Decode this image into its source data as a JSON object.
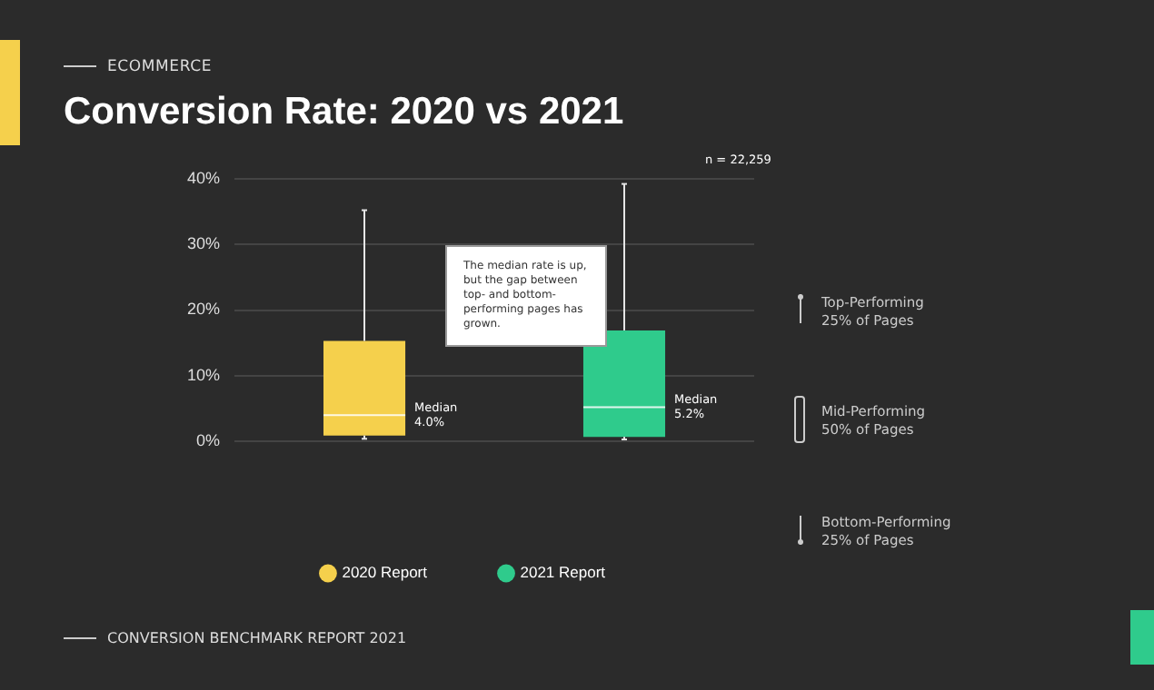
{
  "chart_data": {
    "type": "box",
    "subtitle": "ECOMMERCE",
    "title": "Conversion Rate: 2020 vs 2021",
    "categories": [
      null,
      null
    ],
    "series": [
      {
        "name": "2020 Report",
        "color": "#f5d04c",
        "boxes": [
          {
            "low": 0.4,
            "q1": 0.9,
            "median": 4.0,
            "q3": 15.3,
            "high": 35.2
          },
          null
        ],
        "value_labels": [
          "Median 4.0%",
          null
        ]
      },
      {
        "name": "2021 Report",
        "color": "#2fcb8c",
        "boxes": [
          null,
          {
            "low": 0.3,
            "q1": 0.7,
            "median": 5.2,
            "q3": 16.9,
            "high": 39.2
          }
        ],
        "value_labels": [
          null,
          "Median 5.2%"
        ]
      }
    ],
    "ylim": [
      0,
      40
    ],
    "yticks": [
      {
        "value": 0,
        "label": "0%"
      },
      {
        "value": 10,
        "label": "10%"
      },
      {
        "value": 20,
        "label": "20%"
      },
      {
        "value": 30,
        "label": "30%"
      },
      {
        "value": 40,
        "label": "40%"
      }
    ],
    "grid": "y",
    "legend": "bottom",
    "annotations": [
      "n = 22,259",
      "The median rate is up, but the gap between top- and bottom-performing pages has grown.",
      "Top-Performing 25% of Pages",
      "Mid-Performing 50% of Pages",
      "Bottom-Performing 25% of Pages",
      "CONVERSION BENCHMARK REPORT 2021"
    ]
  }
}
